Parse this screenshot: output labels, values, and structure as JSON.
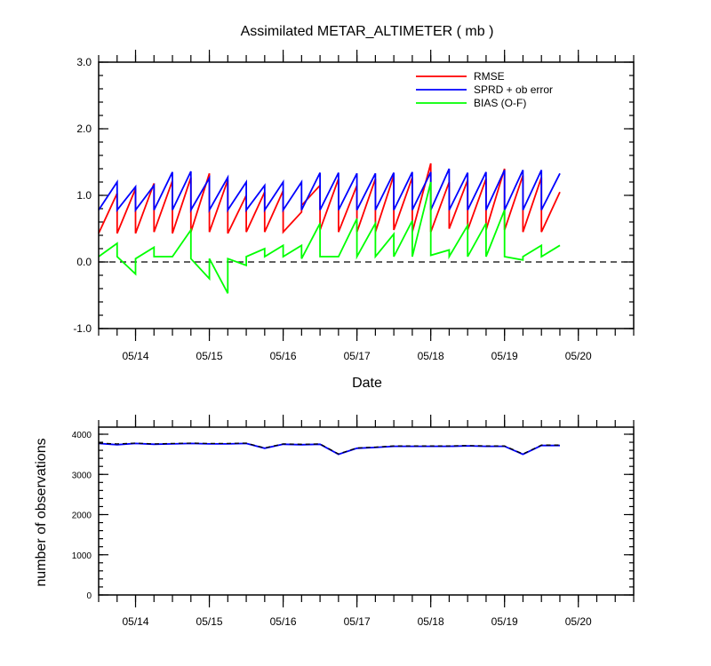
{
  "chart_data": [
    {
      "type": "line",
      "title": "Assimilated METAR_ALTIMETER ( mb )",
      "xlabel": "Date",
      "ylabel": "",
      "xlim": [
        "05/13 12Z",
        "05/20 18Z"
      ],
      "ylim": [
        -1.0,
        3.0
      ],
      "yticks": [
        -1.0,
        0.0,
        1.0,
        2.0,
        3.0
      ],
      "ytick_labels": [
        "-1.0",
        "0.0",
        "1.0",
        "2.0",
        "3.0"
      ],
      "xticks": [
        "05/14",
        "05/15",
        "05/16",
        "05/17",
        "05/18",
        "05/19",
        "05/20"
      ],
      "zero_line": "dashed",
      "legend": "top-right",
      "series": [
        {
          "name": "RMSE",
          "color": "#ff0000",
          "segments": [
            [
              0.0,
              0.43
            ],
            [
              0.25,
              1.03
            ],
            [
              0.25,
              0.43
            ],
            [
              0.5,
              1.1
            ],
            [
              0.5,
              0.43
            ],
            [
              0.75,
              1.18
            ],
            [
              0.75,
              0.45
            ],
            [
              1.0,
              1.22
            ],
            [
              1.0,
              0.43
            ],
            [
              1.25,
              1.27
            ],
            [
              1.25,
              0.45
            ],
            [
              1.5,
              1.33
            ],
            [
              1.5,
              0.45
            ],
            [
              1.75,
              1.23
            ],
            [
              1.75,
              0.43
            ],
            [
              2.0,
              1.0
            ],
            [
              2.0,
              0.45
            ],
            [
              2.25,
              1.05
            ],
            [
              2.25,
              0.45
            ],
            [
              2.5,
              1.07
            ],
            [
              2.5,
              0.45
            ],
            [
              2.75,
              0.75
            ],
            [
              2.75,
              0.85
            ],
            [
              3.0,
              1.15
            ],
            [
              3.0,
              0.48
            ],
            [
              3.25,
              1.25
            ],
            [
              3.25,
              0.45
            ],
            [
              3.5,
              1.15
            ],
            [
              3.5,
              0.45
            ],
            [
              3.75,
              1.25
            ],
            [
              3.75,
              0.45
            ],
            [
              4.0,
              1.3
            ],
            [
              4.0,
              0.48
            ],
            [
              4.25,
              1.27
            ],
            [
              4.25,
              0.45
            ],
            [
              4.5,
              1.48
            ],
            [
              4.5,
              0.45
            ],
            [
              4.75,
              1.2
            ],
            [
              4.75,
              0.5
            ],
            [
              5.0,
              1.23
            ],
            [
              5.0,
              0.48
            ],
            [
              5.25,
              1.25
            ],
            [
              5.25,
              0.48
            ],
            [
              5.5,
              1.4
            ],
            [
              5.5,
              0.48
            ],
            [
              5.75,
              1.3
            ],
            [
              5.75,
              0.45
            ],
            [
              6.0,
              1.27
            ],
            [
              6.0,
              0.45
            ],
            [
              6.25,
              1.05
            ]
          ]
        },
        {
          "name": "SPRD + ob error",
          "color": "#0000ff",
          "segments": [
            [
              0.0,
              0.78
            ],
            [
              0.25,
              1.2
            ],
            [
              0.25,
              0.78
            ],
            [
              0.5,
              1.13
            ],
            [
              0.5,
              0.78
            ],
            [
              0.75,
              1.15
            ],
            [
              0.75,
              0.78
            ],
            [
              1.0,
              1.35
            ],
            [
              1.0,
              0.78
            ],
            [
              1.25,
              1.36
            ],
            [
              1.25,
              0.78
            ],
            [
              1.5,
              1.26
            ],
            [
              1.5,
              0.78
            ],
            [
              1.75,
              1.27
            ],
            [
              1.75,
              0.78
            ],
            [
              2.0,
              1.2
            ],
            [
              2.0,
              0.78
            ],
            [
              2.25,
              1.15
            ],
            [
              2.25,
              0.78
            ],
            [
              2.5,
              1.2
            ],
            [
              2.5,
              0.78
            ],
            [
              2.75,
              1.2
            ],
            [
              2.75,
              0.78
            ],
            [
              3.0,
              1.34
            ],
            [
              3.0,
              0.78
            ],
            [
              3.25,
              1.34
            ],
            [
              3.25,
              0.78
            ],
            [
              3.5,
              1.33
            ],
            [
              3.5,
              0.78
            ],
            [
              3.75,
              1.33
            ],
            [
              3.75,
              0.78
            ],
            [
              4.0,
              1.34
            ],
            [
              4.0,
              0.78
            ],
            [
              4.25,
              1.35
            ],
            [
              4.25,
              0.78
            ],
            [
              4.5,
              1.35
            ],
            [
              4.5,
              0.78
            ],
            [
              4.75,
              1.4
            ],
            [
              4.75,
              0.78
            ],
            [
              5.0,
              1.34
            ],
            [
              5.0,
              0.78
            ],
            [
              5.25,
              1.35
            ],
            [
              5.25,
              0.78
            ],
            [
              5.5,
              1.38
            ],
            [
              5.5,
              0.78
            ],
            [
              5.75,
              1.38
            ],
            [
              5.75,
              0.78
            ],
            [
              6.0,
              1.38
            ],
            [
              6.0,
              0.78
            ],
            [
              6.25,
              1.33
            ]
          ]
        },
        {
          "name": "BIAS (O-F)",
          "color": "#00ff00",
          "segments": [
            [
              0.0,
              0.08
            ],
            [
              0.25,
              0.28
            ],
            [
              0.25,
              0.08
            ],
            [
              0.5,
              -0.18
            ],
            [
              0.5,
              0.05
            ],
            [
              0.75,
              0.22
            ],
            [
              0.75,
              0.08
            ],
            [
              1.0,
              0.08
            ],
            [
              1.0,
              0.08
            ],
            [
              1.25,
              0.48
            ],
            [
              1.25,
              0.05
            ],
            [
              1.5,
              -0.25
            ],
            [
              1.5,
              0.05
            ],
            [
              1.75,
              -0.47
            ],
            [
              1.75,
              0.05
            ],
            [
              2.0,
              -0.05
            ],
            [
              2.0,
              0.08
            ],
            [
              2.25,
              0.2
            ],
            [
              2.25,
              0.08
            ],
            [
              2.5,
              0.25
            ],
            [
              2.5,
              0.08
            ],
            [
              2.75,
              0.25
            ],
            [
              2.75,
              0.05
            ],
            [
              3.0,
              0.58
            ],
            [
              3.0,
              0.08
            ],
            [
              3.25,
              0.08
            ],
            [
              3.25,
              0.08
            ],
            [
              3.5,
              0.65
            ],
            [
              3.5,
              0.08
            ],
            [
              3.75,
              0.58
            ],
            [
              3.75,
              0.08
            ],
            [
              4.0,
              0.42
            ],
            [
              4.0,
              0.08
            ],
            [
              4.25,
              0.62
            ],
            [
              4.25,
              0.08
            ],
            [
              4.5,
              1.2
            ],
            [
              4.5,
              0.1
            ],
            [
              4.75,
              0.18
            ],
            [
              4.75,
              0.08
            ],
            [
              5.0,
              0.55
            ],
            [
              5.0,
              0.08
            ],
            [
              5.25,
              0.58
            ],
            [
              5.25,
              0.08
            ],
            [
              5.5,
              0.78
            ],
            [
              5.5,
              0.08
            ],
            [
              5.75,
              0.03
            ],
            [
              5.75,
              0.08
            ],
            [
              6.0,
              0.25
            ],
            [
              6.0,
              0.08
            ],
            [
              6.25,
              0.25
            ]
          ]
        }
      ]
    },
    {
      "type": "line",
      "title": "",
      "xlabel": "",
      "ylabel": "number of observations",
      "ylim": [
        0,
        4100
      ],
      "yticks": [
        0,
        1000,
        2000,
        3000,
        4000
      ],
      "ytick_labels": [
        "0",
        "1000",
        "2000",
        "3000",
        "4000"
      ],
      "xticks": [
        "05/14",
        "05/15",
        "05/16",
        "05/17",
        "05/18",
        "05/19",
        "05/20"
      ],
      "series": [
        {
          "name": "",
          "color": "#0000ff",
          "style": "solid",
          "x": [
            0.0,
            0.25,
            0.5,
            0.75,
            1.0,
            1.25,
            1.5,
            1.75,
            2.0,
            2.25,
            2.5,
            2.75,
            3.0,
            3.25,
            3.5,
            3.75,
            4.0,
            4.25,
            4.5,
            4.75,
            5.0,
            5.25,
            5.5,
            5.75,
            6.0,
            6.25
          ],
          "values": [
            3770,
            3740,
            3770,
            3750,
            3760,
            3770,
            3760,
            3760,
            3770,
            3650,
            3750,
            3740,
            3750,
            3500,
            3650,
            3670,
            3700,
            3700,
            3700,
            3700,
            3710,
            3700,
            3700,
            3500,
            3720,
            3720
          ]
        },
        {
          "name": "",
          "color": "#000000",
          "style": "dashed",
          "x": [
            0.0,
            0.25,
            0.5,
            0.75,
            1.0,
            1.25,
            1.5,
            1.75,
            2.0,
            2.25,
            2.5,
            2.75,
            3.0,
            3.25,
            3.5,
            3.75,
            4.0,
            4.25,
            4.5,
            4.75,
            5.0,
            5.25,
            5.5,
            5.75,
            6.0,
            6.25
          ],
          "values": [
            3780,
            3760,
            3780,
            3760,
            3770,
            3780,
            3770,
            3770,
            3780,
            3660,
            3760,
            3750,
            3760,
            3510,
            3660,
            3680,
            3710,
            3710,
            3710,
            3710,
            3720,
            3710,
            3710,
            3510,
            3730,
            3730
          ]
        }
      ]
    }
  ]
}
